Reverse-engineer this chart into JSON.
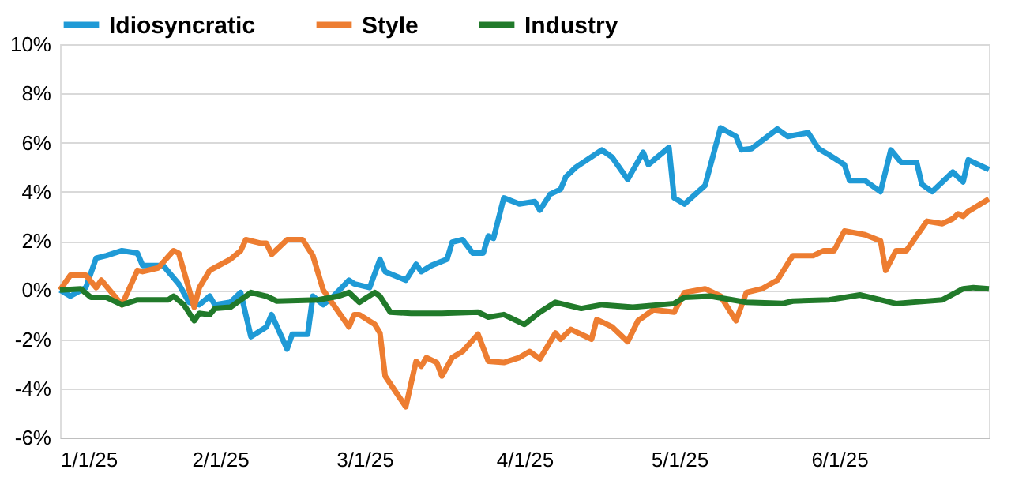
{
  "chart_data": {
    "type": "line",
    "legend": "top",
    "grid": "y",
    "line_style": "solid",
    "marker": "none",
    "xlim": [
      "2025-01-01",
      "2025-06-30"
    ],
    "xticks": [
      {
        "value": "2025-01-01",
        "label": "1/1/25"
      },
      {
        "value": "2025-02-01",
        "label": "2/1/25"
      },
      {
        "value": "2025-03-01",
        "label": "3/1/25"
      },
      {
        "value": "2025-04-01",
        "label": "4/1/25"
      },
      {
        "value": "2025-05-01",
        "label": "5/1/25"
      },
      {
        "value": "2025-06-01",
        "label": "6/1/25"
      }
    ],
    "ylim": [
      -6,
      10
    ],
    "yticks": [
      {
        "value": -6,
        "label": "-6%"
      },
      {
        "value": -4,
        "label": "-4%"
      },
      {
        "value": -2,
        "label": "-2%"
      },
      {
        "value": 0,
        "label": "0%"
      },
      {
        "value": 2,
        "label": "2%"
      },
      {
        "value": 4,
        "label": "4%"
      },
      {
        "value": 6,
        "label": "6%"
      },
      {
        "value": 8,
        "label": "8%"
      },
      {
        "value": 10,
        "label": "10%"
      }
    ],
    "series": [
      {
        "name": "Idiosyncratic",
        "color": "#1f9ad6",
        "x": [
          "2025-01-01",
          "2025-01-03",
          "2025-01-06",
          "2025-01-08",
          "2025-01-10",
          "2025-01-13",
          "2025-01-16",
          "2025-01-17",
          "2025-01-21",
          "2025-01-24",
          "2025-01-26",
          "2025-01-28",
          "2025-01-30",
          "2025-01-31",
          "2025-02-03",
          "2025-02-05",
          "2025-02-07",
          "2025-02-10",
          "2025-02-11",
          "2025-02-14",
          "2025-02-15",
          "2025-02-18",
          "2025-02-19",
          "2025-02-21",
          "2025-02-23",
          "2025-02-26",
          "2025-02-27",
          "2025-03-02",
          "2025-03-04",
          "2025-03-05",
          "2025-03-09",
          "2025-03-11",
          "2025-03-12",
          "2025-03-14",
          "2025-03-17",
          "2025-03-18",
          "2025-03-20",
          "2025-03-22",
          "2025-03-24",
          "2025-03-25",
          "2025-03-26",
          "2025-03-28",
          "2025-03-31",
          "2025-04-03",
          "2025-04-04",
          "2025-04-06",
          "2025-04-08",
          "2025-04-09",
          "2025-04-11",
          "2025-04-16",
          "2025-04-18",
          "2025-04-21",
          "2025-04-24",
          "2025-04-25",
          "2025-04-29",
          "2025-04-30",
          "2025-05-02",
          "2025-05-06",
          "2025-05-09",
          "2025-05-12",
          "2025-05-13",
          "2025-05-15",
          "2025-05-20",
          "2025-05-22",
          "2025-05-26",
          "2025-05-28",
          "2025-05-30",
          "2025-06-02",
          "2025-06-03",
          "2025-06-06",
          "2025-06-09",
          "2025-06-11",
          "2025-06-13",
          "2025-06-16",
          "2025-06-17",
          "2025-06-19",
          "2025-06-23",
          "2025-06-25",
          "2025-06-26",
          "2025-06-30"
        ],
        "values": [
          0,
          -0.25,
          0.1,
          1.3,
          1.4,
          1.6,
          1.5,
          1.0,
          1.0,
          0.25,
          -0.5,
          -0.6,
          -0.25,
          -0.6,
          -0.5,
          -0.1,
          -1.9,
          -1.5,
          -1.0,
          -2.4,
          -1.8,
          -1.8,
          -0.25,
          -0.6,
          -0.25,
          0.4,
          0.25,
          0.1,
          1.25,
          0.75,
          0.4,
          1.05,
          0.75,
          1.0,
          1.25,
          1.95,
          2.05,
          1.5,
          1.5,
          2.2,
          2.1,
          3.75,
          3.5,
          3.6,
          3.25,
          3.9,
          4.1,
          4.6,
          5.0,
          5.7,
          5.4,
          4.5,
          5.6,
          5.1,
          5.8,
          3.75,
          3.5,
          4.25,
          6.6,
          6.25,
          5.7,
          5.75,
          6.55,
          6.25,
          6.4,
          5.75,
          5.5,
          5.1,
          4.45,
          4.45,
          4.0,
          5.7,
          5.2,
          5.2,
          4.3,
          4.0,
          4.8,
          4.4,
          5.3,
          4.9
        ]
      },
      {
        "name": "Style",
        "color": "#ed7d31",
        "x": [
          "2025-01-01",
          "2025-01-03",
          "2025-01-06",
          "2025-01-08",
          "2025-01-09",
          "2025-01-13",
          "2025-01-16",
          "2025-01-17",
          "2025-01-20",
          "2025-01-23",
          "2025-01-24",
          "2025-01-27",
          "2025-01-28",
          "2025-01-30",
          "2025-02-03",
          "2025-02-05",
          "2025-02-06",
          "2025-02-09",
          "2025-02-10",
          "2025-02-11",
          "2025-02-14",
          "2025-02-17",
          "2025-02-19",
          "2025-02-21",
          "2025-02-23",
          "2025-02-26",
          "2025-02-27",
          "2025-02-28",
          "2025-03-03",
          "2025-03-04",
          "2025-03-05",
          "2025-03-09",
          "2025-03-11",
          "2025-03-12",
          "2025-03-13",
          "2025-03-15",
          "2025-03-16",
          "2025-03-18",
          "2025-03-20",
          "2025-03-23",
          "2025-03-25",
          "2025-03-28",
          "2025-03-31",
          "2025-04-02",
          "2025-04-04",
          "2025-04-07",
          "2025-04-08",
          "2025-04-10",
          "2025-04-14",
          "2025-04-15",
          "2025-04-18",
          "2025-04-21",
          "2025-04-23",
          "2025-04-26",
          "2025-04-30",
          "2025-05-02",
          "2025-05-06",
          "2025-05-09",
          "2025-05-12",
          "2025-05-14",
          "2025-05-17",
          "2025-05-20",
          "2025-05-23",
          "2025-05-27",
          "2025-05-29",
          "2025-05-31",
          "2025-06-02",
          "2025-06-06",
          "2025-06-09",
          "2025-06-10",
          "2025-06-12",
          "2025-06-14",
          "2025-06-18",
          "2025-06-21",
          "2025-06-23",
          "2025-06-24",
          "2025-06-25",
          "2025-06-26",
          "2025-06-30"
        ],
        "values": [
          0,
          0.6,
          0.6,
          0.1,
          0.4,
          -0.6,
          0.8,
          0.75,
          0.9,
          1.6,
          1.5,
          -0.7,
          0.1,
          0.8,
          1.25,
          1.6,
          2.05,
          1.9,
          1.9,
          1.45,
          2.05,
          2.05,
          1.4,
          0,
          -0.6,
          -1.5,
          -1.0,
          -1.0,
          -1.4,
          -1.75,
          -3.5,
          -4.75,
          -2.9,
          -3.1,
          -2.75,
          -2.95,
          -3.5,
          -2.75,
          -2.5,
          -1.8,
          -2.9,
          -2.95,
          -2.75,
          -2.5,
          -2.8,
          -1.75,
          -2.0,
          -1.6,
          -2.0,
          -1.2,
          -1.5,
          -2.1,
          -1.25,
          -0.8,
          -0.9,
          -0.1,
          0.05,
          -0.25,
          -1.25,
          -0.1,
          0.05,
          0.4,
          1.4,
          1.4,
          1.6,
          1.6,
          2.4,
          2.25,
          2.0,
          0.8,
          1.6,
          1.6,
          2.8,
          2.7,
          2.9,
          3.1,
          3.0,
          3.2,
          3.7
        ]
      },
      {
        "name": "Industry",
        "color": "#217a2a",
        "x": [
          "2025-01-01",
          "2025-01-05",
          "2025-01-07",
          "2025-01-10",
          "2025-01-13",
          "2025-01-16",
          "2025-01-22",
          "2025-01-23",
          "2025-01-25",
          "2025-01-27",
          "2025-01-28",
          "2025-01-30",
          "2025-01-31",
          "2025-02-03",
          "2025-02-07",
          "2025-02-10",
          "2025-02-12",
          "2025-02-20",
          "2025-02-24",
          "2025-02-26",
          "2025-02-28",
          "2025-03-03",
          "2025-03-04",
          "2025-03-06",
          "2025-03-10",
          "2025-03-16",
          "2025-03-23",
          "2025-03-25",
          "2025-03-28",
          "2025-04-01",
          "2025-04-04",
          "2025-04-07",
          "2025-04-12",
          "2025-04-16",
          "2025-04-22",
          "2025-04-30",
          "2025-05-02",
          "2025-05-07",
          "2025-05-14",
          "2025-05-21",
          "2025-05-23",
          "2025-05-30",
          "2025-06-05",
          "2025-06-12",
          "2025-06-21",
          "2025-06-25",
          "2025-06-27",
          "2025-06-30"
        ],
        "values": [
          0,
          0.05,
          -0.3,
          -0.3,
          -0.6,
          -0.4,
          -0.4,
          -0.25,
          -0.6,
          -1.25,
          -0.95,
          -1.0,
          -0.75,
          -0.7,
          -0.1,
          -0.25,
          -0.45,
          -0.4,
          -0.25,
          -0.1,
          -0.5,
          -0.1,
          -0.25,
          -0.9,
          -0.95,
          -0.95,
          -0.9,
          -1.1,
          -1.0,
          -1.4,
          -0.9,
          -0.5,
          -0.75,
          -0.6,
          -0.7,
          -0.55,
          -0.3,
          -0.25,
          -0.5,
          -0.55,
          -0.45,
          -0.4,
          -0.2,
          -0.55,
          -0.4,
          0.05,
          0.1,
          0.05
        ]
      }
    ]
  }
}
